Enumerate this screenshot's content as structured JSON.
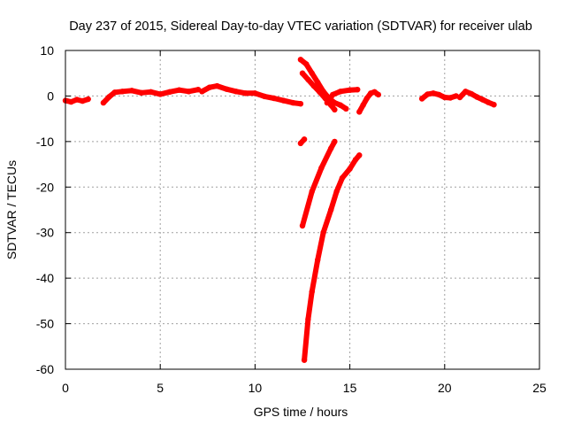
{
  "chart_data": {
    "type": "scatter",
    "title": "Day 237 of 2015, Sidereal Day-to-day VTEC variation (SDTVAR) for receiver ulab",
    "xlabel": "GPS time / hours",
    "ylabel": "SDTVAR / TECUs",
    "xlim": [
      0,
      25
    ],
    "ylim": [
      -60,
      10
    ],
    "xticks": [
      0,
      5,
      10,
      15,
      20,
      25
    ],
    "yticks": [
      -60,
      -50,
      -40,
      -30,
      -20,
      -10,
      0,
      10
    ],
    "grid": true,
    "legend": "none",
    "series_color": "#ff0000",
    "segments": [
      {
        "name": "arc-a1",
        "points": [
          [
            0.0,
            -1.0
          ],
          [
            0.3,
            -1.3
          ],
          [
            0.6,
            -0.8
          ],
          [
            0.9,
            -1.1
          ],
          [
            1.2,
            -0.7
          ]
        ]
      },
      {
        "name": "arc-a2",
        "points": [
          [
            2.0,
            -1.5
          ],
          [
            2.3,
            -0.2
          ],
          [
            2.6,
            0.8
          ],
          [
            3.0,
            1.0
          ],
          [
            3.5,
            1.2
          ],
          [
            4.0,
            0.7
          ],
          [
            4.5,
            0.9
          ],
          [
            5.0,
            0.4
          ],
          [
            5.5,
            0.9
          ],
          [
            6.0,
            1.3
          ],
          [
            6.5,
            1.0
          ],
          [
            7.0,
            1.4
          ]
        ]
      },
      {
        "name": "arc-a3",
        "points": [
          [
            7.2,
            1.0
          ],
          [
            7.6,
            1.9
          ],
          [
            8.0,
            2.2
          ],
          [
            8.5,
            1.5
          ],
          [
            9.0,
            1.0
          ],
          [
            9.5,
            0.6
          ],
          [
            10.0,
            0.6
          ],
          [
            10.5,
            -0.1
          ],
          [
            11.0,
            -0.5
          ],
          [
            11.5,
            -1.0
          ],
          [
            12.0,
            -1.5
          ],
          [
            12.4,
            -1.7
          ]
        ]
      },
      {
        "name": "arc-b1",
        "points": [
          [
            12.4,
            8.0
          ],
          [
            12.7,
            7.0
          ],
          [
            13.0,
            5.0
          ],
          [
            13.3,
            3.0
          ],
          [
            13.6,
            1.0
          ],
          [
            13.9,
            -0.5
          ],
          [
            14.2,
            -1.5
          ],
          [
            14.5,
            -2.0
          ],
          [
            14.8,
            -2.8
          ]
        ]
      },
      {
        "name": "arc-b2",
        "points": [
          [
            12.5,
            5.0
          ],
          [
            12.8,
            3.6
          ],
          [
            13.1,
            2.2
          ],
          [
            13.4,
            0.9
          ],
          [
            13.7,
            -0.5
          ],
          [
            14.0,
            -2.0
          ],
          [
            14.2,
            -3.0
          ]
        ]
      },
      {
        "name": "arc-b3",
        "points": [
          [
            13.8,
            -1.5
          ],
          [
            14.1,
            0.3
          ],
          [
            14.5,
            1.0
          ],
          [
            15.0,
            1.3
          ],
          [
            15.4,
            1.4
          ]
        ]
      },
      {
        "name": "arc-b4",
        "points": [
          [
            15.5,
            -3.5
          ],
          [
            15.7,
            -2.0
          ],
          [
            15.9,
            -0.5
          ],
          [
            16.1,
            0.6
          ],
          [
            16.3,
            0.9
          ],
          [
            16.5,
            0.3
          ]
        ]
      },
      {
        "name": "arc-c1",
        "points": [
          [
            12.6,
            -9.5
          ],
          [
            12.4,
            -10.4
          ]
        ]
      },
      {
        "name": "arc-c2",
        "points": [
          [
            12.5,
            -28.5
          ],
          [
            13.0,
            -21.0
          ],
          [
            13.5,
            -15.8
          ],
          [
            14.0,
            -11.5
          ],
          [
            14.2,
            -10.0
          ]
        ]
      },
      {
        "name": "arc-c3",
        "points": [
          [
            12.6,
            -58.0
          ],
          [
            12.8,
            -49.0
          ],
          [
            13.0,
            -43.0
          ],
          [
            13.3,
            -36.0
          ],
          [
            13.6,
            -30.0
          ],
          [
            14.0,
            -25.0
          ],
          [
            14.3,
            -21.0
          ],
          [
            14.6,
            -18.0
          ],
          [
            15.0,
            -16.0
          ],
          [
            15.3,
            -14.0
          ],
          [
            15.5,
            -13.0
          ]
        ]
      },
      {
        "name": "arc-d1",
        "points": [
          [
            18.8,
            -0.6
          ],
          [
            19.1,
            0.4
          ],
          [
            19.4,
            0.6
          ],
          [
            19.7,
            0.3
          ],
          [
            20.0,
            -0.3
          ],
          [
            20.3,
            -0.4
          ],
          [
            20.6,
            0.0
          ]
        ]
      },
      {
        "name": "arc-d2",
        "points": [
          [
            20.8,
            -0.3
          ],
          [
            21.1,
            1.0
          ],
          [
            21.4,
            0.5
          ],
          [
            21.7,
            -0.2
          ],
          [
            22.0,
            -0.8
          ],
          [
            22.3,
            -1.4
          ],
          [
            22.6,
            -1.9
          ]
        ]
      }
    ]
  }
}
